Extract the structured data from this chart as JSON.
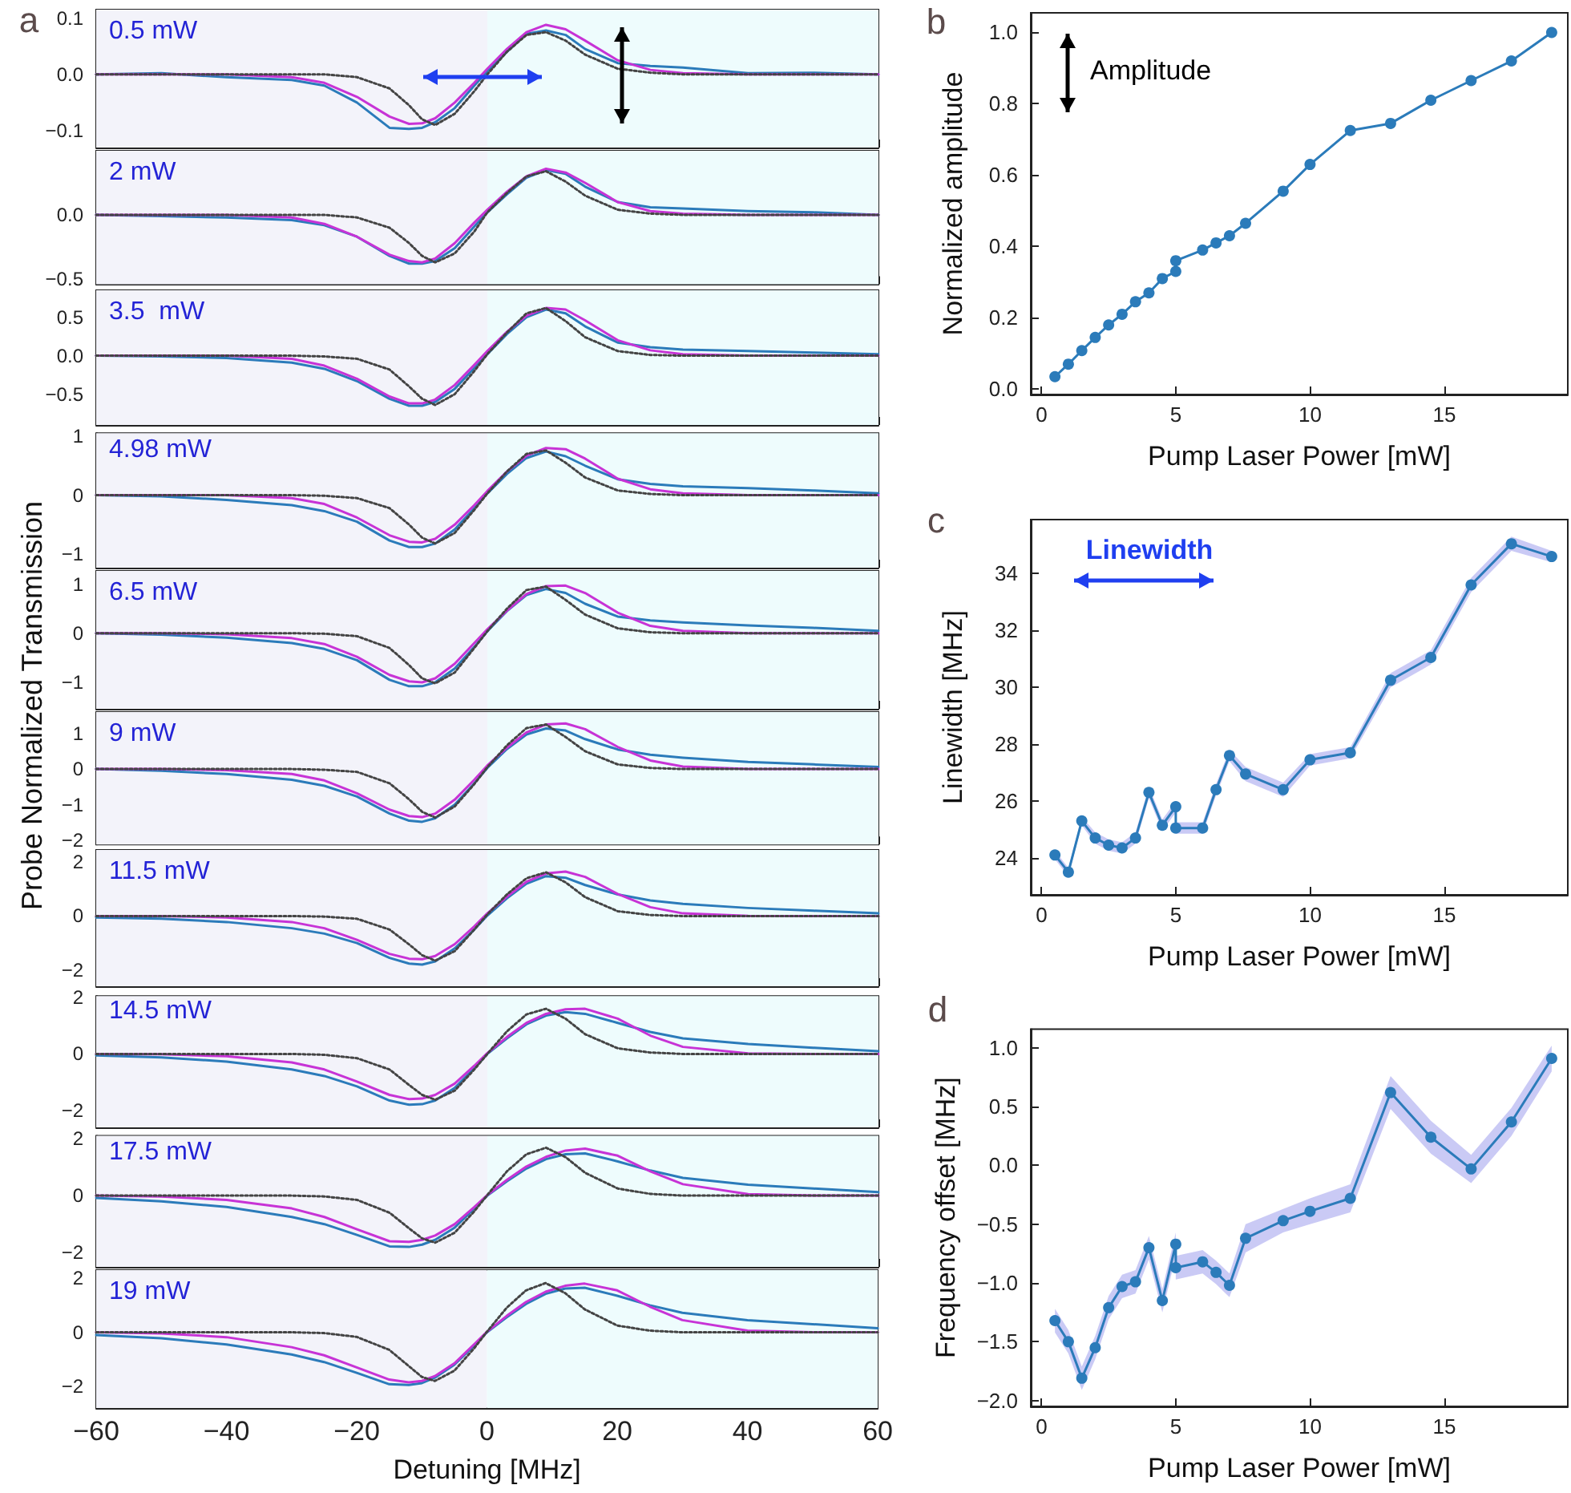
{
  "chart_data": [
    {
      "type": "line",
      "annotations": [
        "a",
        "0.5 mW"
      ],
      "x": [
        -60,
        -50,
        -40,
        -30,
        -25,
        -20,
        -15,
        -12,
        -10,
        -8,
        -5,
        -2,
        0,
        3,
        6,
        9,
        12,
        15,
        20,
        25,
        30,
        40,
        50,
        60
      ],
      "xlim": [
        -60,
        60
      ],
      "xticks": [
        -60,
        -40,
        -20,
        0,
        20,
        40,
        60
      ],
      "ylim": [
        -0.13,
        0.115
      ],
      "yticks": [
        0.1,
        {
          "value": 0,
          "label": "0.0"
        },
        {
          "value": -0.1,
          "label": "−0.1"
        }
      ],
      "tick_labels": "y",
      "marker": "none",
      "bands": [
        {
          "axis": "x",
          "from": -60,
          "to": 0,
          "color": "#f3f3fa"
        },
        {
          "axis": "x",
          "from": 0,
          "to": 60,
          "color": "#eefcfd"
        }
      ],
      "series": [
        {
          "color": "#2b7bba",
          "values": [
            0,
            0.002,
            -0.005,
            -0.01,
            -0.02,
            -0.05,
            -0.095,
            -0.097,
            -0.095,
            -0.085,
            -0.06,
            -0.02,
            0.005,
            0.04,
            0.072,
            0.078,
            0.07,
            0.045,
            0.02,
            0.015,
            0.012,
            0.002,
            0.003,
            0
          ]
        },
        {
          "color": "#c733d6",
          "values": [
            0,
            0,
            0,
            -0.005,
            -0.015,
            -0.04,
            -0.075,
            -0.088,
            -0.087,
            -0.078,
            -0.05,
            -0.015,
            0.01,
            0.045,
            0.075,
            0.088,
            0.08,
            0.06,
            0.025,
            0.008,
            0.002,
            0,
            0,
            0
          ]
        },
        {
          "color": "#444444",
          "line_style": "dotted",
          "values": [
            0,
            0,
            0,
            0,
            0,
            -0.005,
            -0.025,
            -0.055,
            -0.08,
            -0.09,
            -0.07,
            -0.03,
            0,
            0.04,
            0.07,
            0.075,
            0.06,
            0.035,
            0.01,
            0.003,
            0,
            0,
            0,
            0
          ]
        }
      ]
    },
    {
      "type": "line",
      "annotations": [
        "2 mW"
      ],
      "x": [
        -60,
        -50,
        -40,
        -30,
        -25,
        -20,
        -15,
        -12,
        -10,
        -8,
        -5,
        -2,
        0,
        3,
        6,
        9,
        12,
        15,
        20,
        25,
        30,
        40,
        50,
        60
      ],
      "xlim": [
        -60,
        60
      ],
      "xticks": [
        -60,
        -40,
        -20,
        0,
        20,
        40,
        60
      ],
      "ylim": [
        -0.54,
        0.5
      ],
      "yticks": [
        {
          "value": 0,
          "label": "0.0"
        },
        {
          "value": -0.5,
          "label": "−0.5"
        }
      ],
      "tick_labels": "y",
      "marker": "none",
      "bands": [
        {
          "axis": "x",
          "from": -60,
          "to": 0,
          "color": "#f3f3fa"
        },
        {
          "axis": "x",
          "from": 0,
          "to": 60,
          "color": "#eefcfd"
        }
      ],
      "series": [
        {
          "color": "#2b7bba",
          "values": [
            0,
            -0.01,
            -0.02,
            -0.04,
            -0.08,
            -0.17,
            -0.32,
            -0.38,
            -0.38,
            -0.36,
            -0.26,
            -0.09,
            0.02,
            0.16,
            0.29,
            0.35,
            0.32,
            0.22,
            0.1,
            0.06,
            0.05,
            0.03,
            0.02,
            0
          ]
        },
        {
          "color": "#c733d6",
          "values": [
            0,
            0,
            0,
            -0.02,
            -0.07,
            -0.17,
            -0.31,
            -0.36,
            -0.37,
            -0.34,
            -0.22,
            -0.06,
            0.04,
            0.18,
            0.3,
            0.36,
            0.33,
            0.25,
            0.1,
            0.03,
            0.01,
            0,
            0,
            0
          ]
        },
        {
          "color": "#444444",
          "line_style": "dotted",
          "values": [
            0,
            0,
            0,
            0,
            0,
            -0.02,
            -0.1,
            -0.22,
            -0.32,
            -0.37,
            -0.3,
            -0.13,
            0.02,
            0.17,
            0.3,
            0.34,
            0.26,
            0.15,
            0.04,
            0.01,
            0,
            0,
            0,
            0
          ]
        }
      ]
    },
    {
      "type": "line",
      "annotations": [
        "3.5  mW"
      ],
      "x": [
        -60,
        -50,
        -40,
        -30,
        -25,
        -20,
        -15,
        -12,
        -10,
        -8,
        -5,
        -2,
        0,
        3,
        6,
        9,
        12,
        15,
        20,
        25,
        30,
        40,
        50,
        60
      ],
      "xlim": [
        -60,
        60
      ],
      "xticks": [
        -60,
        -40,
        -20,
        0,
        20,
        40,
        60
      ],
      "ylim": [
        -0.9,
        0.85
      ],
      "yticks": [
        0.5,
        {
          "value": 0,
          "label": "0.0"
        },
        {
          "value": -0.5,
          "label": "−0.5"
        }
      ],
      "tick_labels": "y",
      "marker": "none",
      "bands": [
        {
          "axis": "x",
          "from": -60,
          "to": 0,
          "color": "#f3f3fa"
        },
        {
          "axis": "x",
          "from": 0,
          "to": 60,
          "color": "#eefcfd"
        }
      ],
      "series": [
        {
          "color": "#2b7bba",
          "values": [
            0,
            -0.01,
            -0.03,
            -0.09,
            -0.17,
            -0.33,
            -0.56,
            -0.65,
            -0.65,
            -0.6,
            -0.43,
            -0.16,
            0.02,
            0.28,
            0.5,
            0.6,
            0.55,
            0.38,
            0.17,
            0.11,
            0.08,
            0.06,
            0.04,
            0.02
          ]
        },
        {
          "color": "#c733d6",
          "values": [
            0,
            0,
            0,
            -0.04,
            -0.13,
            -0.3,
            -0.53,
            -0.62,
            -0.62,
            -0.57,
            -0.38,
            -0.12,
            0.06,
            0.31,
            0.52,
            0.62,
            0.6,
            0.46,
            0.2,
            0.07,
            0.02,
            0,
            0,
            0
          ]
        },
        {
          "color": "#444444",
          "line_style": "dotted",
          "values": [
            0,
            0,
            0,
            0,
            -0.01,
            -0.04,
            -0.18,
            -0.4,
            -0.56,
            -0.64,
            -0.5,
            -0.2,
            0.02,
            0.3,
            0.55,
            0.62,
            0.45,
            0.24,
            0.06,
            0.01,
            0,
            0,
            0,
            0
          ]
        }
      ]
    },
    {
      "type": "line",
      "annotations": [
        "4.98 mW"
      ],
      "x": [
        -60,
        -50,
        -40,
        -30,
        -25,
        -20,
        -15,
        -12,
        -10,
        -8,
        -5,
        -2,
        0,
        3,
        6,
        9,
        12,
        15,
        20,
        25,
        30,
        40,
        50,
        60
      ],
      "xlim": [
        -60,
        60
      ],
      "xticks": [
        -60,
        -40,
        -20,
        0,
        20,
        40,
        60
      ],
      "ylim": [
        -1.23,
        1.05
      ],
      "yticks": [
        1,
        0,
        {
          "value": -1,
          "label": "−1"
        }
      ],
      "tick_labels": "y",
      "marker": "none",
      "bands": [
        {
          "axis": "x",
          "from": -60,
          "to": 0,
          "color": "#f3f3fa"
        },
        {
          "axis": "x",
          "from": 0,
          "to": 60,
          "color": "#eefcfd"
        }
      ],
      "series": [
        {
          "color": "#2b7bba",
          "values": [
            0,
            -0.02,
            -0.08,
            -0.17,
            -0.27,
            -0.45,
            -0.77,
            -0.88,
            -0.88,
            -0.82,
            -0.58,
            -0.22,
            0.03,
            0.36,
            0.63,
            0.74,
            0.66,
            0.5,
            0.27,
            0.19,
            0.15,
            0.12,
            0.08,
            0.03
          ]
        },
        {
          "color": "#c733d6",
          "values": [
            0,
            0,
            0,
            -0.05,
            -0.15,
            -0.38,
            -0.68,
            -0.79,
            -0.8,
            -0.74,
            -0.5,
            -0.17,
            0.07,
            0.4,
            0.67,
            0.8,
            0.78,
            0.62,
            0.28,
            0.1,
            0.03,
            0,
            0,
            0
          ]
        },
        {
          "color": "#444444",
          "line_style": "dotted",
          "values": [
            0,
            0,
            0,
            0,
            -0.01,
            -0.05,
            -0.22,
            -0.5,
            -0.72,
            -0.82,
            -0.64,
            -0.25,
            0.03,
            0.4,
            0.7,
            0.76,
            0.55,
            0.3,
            0.08,
            0.02,
            0,
            0,
            0,
            0
          ]
        }
      ]
    },
    {
      "type": "line",
      "annotations": [
        "6.5 mW"
      ],
      "x": [
        -60,
        -50,
        -40,
        -30,
        -25,
        -20,
        -15,
        -12,
        -10,
        -8,
        -5,
        -2,
        0,
        3,
        6,
        9,
        12,
        15,
        20,
        25,
        30,
        40,
        50,
        60
      ],
      "xlim": [
        -60,
        60
      ],
      "xticks": [
        -60,
        -40,
        -20,
        0,
        20,
        40,
        60
      ],
      "ylim": [
        -1.54,
        1.27
      ],
      "yticks": [
        1,
        0,
        {
          "value": -1,
          "label": "−1"
        }
      ],
      "tick_labels": "y",
      "marker": "none",
      "bands": [
        {
          "axis": "x",
          "from": -60,
          "to": 0,
          "color": "#f3f3fa"
        },
        {
          "axis": "x",
          "from": 0,
          "to": 60,
          "color": "#eefcfd"
        }
      ],
      "series": [
        {
          "color": "#2b7bba",
          "values": [
            0,
            -0.03,
            -0.09,
            -0.2,
            -0.32,
            -0.55,
            -0.95,
            -1.08,
            -1.08,
            -1,
            -0.72,
            -0.28,
            0.04,
            0.45,
            0.78,
            0.9,
            0.82,
            0.6,
            0.34,
            0.26,
            0.22,
            0.16,
            0.11,
            0.05
          ]
        },
        {
          "color": "#c733d6",
          "values": [
            0,
            0,
            -0.02,
            -0.1,
            -0.22,
            -0.48,
            -0.85,
            -0.98,
            -1,
            -0.92,
            -0.62,
            -0.2,
            0.08,
            0.46,
            0.8,
            0.96,
            0.97,
            0.82,
            0.42,
            0.15,
            0.05,
            0,
            0,
            0
          ]
        },
        {
          "color": "#444444",
          "line_style": "dotted",
          "values": [
            0,
            0,
            0,
            0,
            -0.01,
            -0.06,
            -0.3,
            -0.65,
            -0.92,
            -1.02,
            -0.8,
            -0.3,
            0.04,
            0.5,
            0.88,
            0.95,
            0.68,
            0.38,
            0.1,
            0.02,
            0,
            0,
            0,
            0
          ]
        }
      ]
    },
    {
      "type": "line",
      "annotations": [
        "9 mW"
      ],
      "ylabel": "Probe Normalized Transmission",
      "x": [
        -60,
        -50,
        -40,
        -30,
        -25,
        -20,
        -15,
        -12,
        -10,
        -8,
        -5,
        -2,
        0,
        3,
        6,
        9,
        12,
        15,
        20,
        25,
        30,
        40,
        50,
        60
      ],
      "xlim": [
        -60,
        60
      ],
      "xticks": [
        -60,
        -40,
        -20,
        0,
        20,
        40,
        60
      ],
      "ylim": [
        -2.12,
        1.6
      ],
      "yticks": [
        1,
        0,
        {
          "value": -1,
          "label": "−1"
        },
        {
          "value": -2,
          "label": "−2"
        }
      ],
      "tick_labels": "y",
      "marker": "none",
      "bands": [
        {
          "axis": "x",
          "from": -60,
          "to": 0,
          "color": "#f3f3fa"
        },
        {
          "axis": "x",
          "from": 0,
          "to": 60,
          "color": "#eefcfd"
        }
      ],
      "series": [
        {
          "color": "#2b7bba",
          "values": [
            0,
            -0.05,
            -0.14,
            -0.3,
            -0.47,
            -0.77,
            -1.25,
            -1.45,
            -1.48,
            -1.38,
            -1,
            -0.4,
            0.03,
            0.56,
            0.97,
            1.14,
            1.08,
            0.84,
            0.55,
            0.4,
            0.32,
            0.2,
            0.13,
            0.06
          ]
        },
        {
          "color": "#c733d6",
          "values": [
            0,
            0,
            -0.03,
            -0.14,
            -0.32,
            -0.68,
            -1.14,
            -1.32,
            -1.35,
            -1.25,
            -0.86,
            -0.3,
            0.1,
            0.6,
            1.03,
            1.25,
            1.28,
            1.12,
            0.62,
            0.24,
            0.07,
            0,
            0,
            0
          ]
        },
        {
          "color": "#444444",
          "line_style": "dotted",
          "values": [
            0,
            0,
            0,
            0,
            -0.02,
            -0.08,
            -0.4,
            -0.85,
            -1.2,
            -1.36,
            -1.05,
            -0.42,
            0.05,
            0.66,
            1.15,
            1.25,
            0.9,
            0.5,
            0.13,
            0.03,
            0,
            0,
            0,
            0
          ]
        }
      ]
    },
    {
      "type": "line",
      "annotations": [
        "11.5 mW"
      ],
      "x": [
        -60,
        -50,
        -40,
        -30,
        -25,
        -20,
        -15,
        -12,
        -10,
        -8,
        -5,
        -2,
        0,
        3,
        6,
        9,
        12,
        15,
        20,
        25,
        30,
        40,
        50,
        60
      ],
      "xlim": [
        -60,
        60
      ],
      "xticks": [
        -60,
        -40,
        -20,
        0,
        20,
        40,
        60
      ],
      "ylim": [
        -2.6,
        2.45
      ],
      "yticks": [
        2,
        0,
        {
          "value": -2,
          "label": "−2"
        }
      ],
      "tick_labels": "y",
      "marker": "none",
      "bands": [
        {
          "axis": "x",
          "from": -60,
          "to": 0,
          "color": "#f3f3fa"
        },
        {
          "axis": "x",
          "from": 0,
          "to": 60,
          "color": "#eefcfd"
        }
      ],
      "series": [
        {
          "color": "#2b7bba",
          "values": [
            -0.05,
            -0.1,
            -0.22,
            -0.45,
            -0.65,
            -1,
            -1.55,
            -1.76,
            -1.8,
            -1.68,
            -1.2,
            -0.5,
            0.02,
            0.66,
            1.2,
            1.48,
            1.42,
            1.15,
            0.8,
            0.58,
            0.45,
            0.3,
            0.2,
            0.1
          ]
        },
        {
          "color": "#c733d6",
          "values": [
            0,
            0,
            -0.05,
            -0.22,
            -0.45,
            -0.88,
            -1.4,
            -1.58,
            -1.6,
            -1.48,
            -1.04,
            -0.38,
            0.1,
            0.72,
            1.27,
            1.58,
            1.65,
            1.45,
            0.82,
            0.33,
            0.1,
            0.01,
            0,
            0
          ]
        },
        {
          "color": "#444444",
          "line_style": "dotted",
          "values": [
            0,
            0,
            0,
            0,
            -0.02,
            -0.1,
            -0.5,
            -1.05,
            -1.45,
            -1.65,
            -1.3,
            -0.5,
            0.06,
            0.8,
            1.4,
            1.62,
            1.25,
            0.7,
            0.18,
            0.04,
            0,
            0,
            0,
            0
          ]
        }
      ]
    },
    {
      "type": "line",
      "annotations": [
        "14.5 mW"
      ],
      "x": [
        -60,
        -50,
        -40,
        -30,
        -25,
        -20,
        -15,
        -12,
        -10,
        -8,
        -5,
        -2,
        0,
        3,
        6,
        9,
        12,
        15,
        20,
        25,
        30,
        40,
        50,
        60
      ],
      "xlim": [
        -60,
        60
      ],
      "xticks": [
        -60,
        -40,
        -20,
        0,
        20,
        40,
        60
      ],
      "ylim": [
        -2.6,
        2.05
      ],
      "yticks": [
        2,
        0,
        {
          "value": -2,
          "label": "−2"
        }
      ],
      "tick_labels": "y",
      "marker": "none",
      "bands": [
        {
          "axis": "x",
          "from": -60,
          "to": 0,
          "color": "#f3f3fa"
        },
        {
          "axis": "x",
          "from": 0,
          "to": 60,
          "color": "#eefcfd"
        }
      ],
      "series": [
        {
          "color": "#2b7bba",
          "values": [
            -0.05,
            -0.12,
            -0.27,
            -0.55,
            -0.78,
            -1.15,
            -1.65,
            -1.8,
            -1.78,
            -1.65,
            -1.2,
            -0.5,
            0,
            0.55,
            1.05,
            1.36,
            1.48,
            1.42,
            1.1,
            0.78,
            0.55,
            0.35,
            0.22,
            0.1
          ]
        },
        {
          "color": "#c733d6",
          "values": [
            0,
            -0.01,
            -0.08,
            -0.3,
            -0.55,
            -0.98,
            -1.45,
            -1.6,
            -1.58,
            -1.45,
            -1.05,
            -0.42,
            0.03,
            0.6,
            1.1,
            1.42,
            1.58,
            1.6,
            1.25,
            0.65,
            0.25,
            0.02,
            0,
            0
          ]
        },
        {
          "color": "#444444",
          "line_style": "dotted",
          "values": [
            0,
            0,
            0,
            0,
            -0.03,
            -0.15,
            -0.55,
            -1.1,
            -1.45,
            -1.62,
            -1.3,
            -0.55,
            0,
            0.8,
            1.4,
            1.6,
            1.25,
            0.7,
            0.2,
            0.05,
            0,
            0,
            0,
            0
          ]
        }
      ]
    },
    {
      "type": "line",
      "annotations": [
        "17.5 mW"
      ],
      "x": [
        -60,
        -50,
        -40,
        -30,
        -25,
        -20,
        -15,
        -12,
        -10,
        -8,
        -5,
        -2,
        0,
        3,
        6,
        9,
        12,
        15,
        20,
        25,
        30,
        40,
        50,
        60
      ],
      "xlim": [
        -60,
        60
      ],
      "xticks": [
        -60,
        -40,
        -20,
        0,
        20,
        40,
        60
      ],
      "ylim": [
        -2.5,
        2.1
      ],
      "yticks": [
        2,
        0,
        {
          "value": -2,
          "label": "−2"
        }
      ],
      "tick_labels": "y",
      "marker": "none",
      "bands": [
        {
          "axis": "x",
          "from": -60,
          "to": 0,
          "color": "#f3f3fa"
        },
        {
          "axis": "x",
          "from": 0,
          "to": 60,
          "color": "#eefcfd"
        }
      ],
      "series": [
        {
          "color": "#2b7bba",
          "values": [
            -0.08,
            -0.2,
            -0.4,
            -0.75,
            -1,
            -1.38,
            -1.78,
            -1.8,
            -1.72,
            -1.55,
            -1.12,
            -0.45,
            0,
            0.5,
            0.95,
            1.28,
            1.45,
            1.48,
            1.2,
            0.88,
            0.62,
            0.38,
            0.25,
            0.12
          ]
        },
        {
          "color": "#c733d6",
          "values": [
            0,
            -0.03,
            -0.15,
            -0.45,
            -0.75,
            -1.18,
            -1.6,
            -1.62,
            -1.55,
            -1.4,
            -1,
            -0.4,
            0.02,
            0.55,
            1.02,
            1.36,
            1.58,
            1.65,
            1.4,
            0.85,
            0.4,
            0.05,
            0,
            0
          ]
        },
        {
          "color": "#444444",
          "line_style": "dotted",
          "values": [
            0,
            0,
            0,
            0,
            -0.03,
            -0.15,
            -0.6,
            -1.15,
            -1.5,
            -1.65,
            -1.3,
            -0.55,
            0.02,
            0.85,
            1.45,
            1.68,
            1.35,
            0.8,
            0.25,
            0.06,
            0,
            0,
            0,
            0
          ]
        }
      ]
    },
    {
      "type": "line",
      "annotations": [
        "19 mW"
      ],
      "xlabel": "Detuning [MHz]",
      "x": [
        -60,
        -50,
        -40,
        -30,
        -25,
        -20,
        -15,
        -12,
        -10,
        -8,
        -5,
        -2,
        0,
        3,
        6,
        9,
        12,
        15,
        20,
        25,
        30,
        40,
        50,
        60
      ],
      "xlim": [
        -60,
        60
      ],
      "xticks": [
        {
          "value": -60,
          "label": "−60"
        },
        {
          "value": -40,
          "label": "−40"
        },
        {
          "value": -20,
          "label": "−20"
        },
        0,
        20,
        40,
        60
      ],
      "ylim": [
        -2.8,
        2.3
      ],
      "yticks": [
        2,
        0,
        {
          "value": -2,
          "label": "−2"
        }
      ],
      "marker": "none",
      "bands": [
        {
          "axis": "x",
          "from": -60,
          "to": 0,
          "color": "#f3f3fa"
        },
        {
          "axis": "x",
          "from": 0,
          "to": 60,
          "color": "#eefcfd"
        }
      ],
      "series": [
        {
          "color": "#2b7bba",
          "values": [
            -0.1,
            -0.22,
            -0.45,
            -0.82,
            -1.1,
            -1.5,
            -1.92,
            -1.95,
            -1.88,
            -1.68,
            -1.2,
            -0.5,
            0,
            0.55,
            1.05,
            1.42,
            1.62,
            1.65,
            1.35,
            1,
            0.72,
            0.45,
            0.3,
            0.15
          ]
        },
        {
          "color": "#c733d6",
          "values": [
            0,
            -0.04,
            -0.18,
            -0.55,
            -0.85,
            -1.3,
            -1.75,
            -1.85,
            -1.8,
            -1.62,
            -1.15,
            -0.45,
            0.02,
            0.6,
            1.12,
            1.5,
            1.72,
            1.8,
            1.55,
            0.95,
            0.45,
            0.06,
            0,
            0
          ]
        },
        {
          "color": "#444444",
          "line_style": "dotted",
          "values": [
            0,
            0,
            0,
            0,
            -0.03,
            -0.17,
            -0.65,
            -1.25,
            -1.65,
            -1.8,
            -1.42,
            -0.6,
            0.02,
            0.9,
            1.55,
            1.82,
            1.45,
            0.85,
            0.25,
            0.06,
            0,
            0,
            0,
            0
          ]
        }
      ]
    },
    {
      "type": "line",
      "annotations": [
        "b",
        "Amplitude"
      ],
      "xlabel": "Pump Laser Power [mW]",
      "ylabel": "Normalized amplitude",
      "x": [
        0.5,
        1,
        1.5,
        2,
        2.5,
        3,
        3.5,
        4,
        4.5,
        5,
        5,
        6,
        6.5,
        7,
        7.6,
        9,
        10,
        11.5,
        13,
        14.5,
        16,
        17.5,
        19
      ],
      "xlim": [
        -0.4,
        19.6
      ],
      "xticks": [
        0,
        5,
        10,
        15
      ],
      "ylim": [
        -0.015,
        1.055
      ],
      "yticks": [
        {
          "value": 0,
          "label": "0.0"
        },
        0.2,
        0.4,
        0.6,
        0.8,
        {
          "value": 1,
          "label": "1.0"
        }
      ],
      "marker": "circle",
      "series": [
        {
          "color": "#2b7bba",
          "values": [
            0.035,
            0.07,
            0.108,
            0.145,
            0.18,
            0.21,
            0.245,
            0.27,
            0.31,
            0.33,
            0.36,
            0.39,
            0.41,
            0.43,
            0.465,
            0.555,
            0.63,
            0.725,
            0.745,
            0.81,
            0.865,
            0.92,
            1
          ]
        }
      ]
    },
    {
      "type": "line",
      "annotations": [
        "c",
        "Linewidth"
      ],
      "xlabel": "Pump Laser Power [mW]",
      "ylabel": "Linewidth [MHz]",
      "x": [
        0.5,
        1,
        1.5,
        2,
        2.5,
        3,
        3.5,
        4,
        4.5,
        5,
        5,
        6,
        6.5,
        7,
        7.6,
        9,
        10,
        11.5,
        13,
        14.5,
        16,
        17.5,
        19
      ],
      "xlim": [
        -0.4,
        19.6
      ],
      "xticks": [
        0,
        5,
        10,
        15
      ],
      "ylim": [
        22.7,
        35.9
      ],
      "yticks": [
        24,
        26,
        28,
        30,
        32,
        34
      ],
      "marker": "circle",
      "series": [
        {
          "color": "#2b7bba",
          "values": [
            24.1,
            23.5,
            25.3,
            24.7,
            24.45,
            24.35,
            24.7,
            26.3,
            25.15,
            25.8,
            25.05,
            25.05,
            26.4,
            27.6,
            26.95,
            26.4,
            27.45,
            27.7,
            30.25,
            31.05,
            33.6,
            35.05,
            34.6
          ],
          "lower": [
            23.95,
            23.35,
            25.15,
            24.5,
            24.25,
            24.15,
            24.5,
            26.1,
            24.95,
            25.6,
            24.85,
            24.85,
            26.2,
            27.4,
            26.7,
            26.15,
            27.25,
            27.5,
            30.0,
            30.8,
            33.35,
            34.8,
            34.4
          ],
          "upper": [
            24.25,
            23.65,
            25.45,
            24.9,
            24.65,
            24.55,
            24.9,
            26.5,
            25.35,
            26.0,
            25.25,
            25.25,
            26.6,
            27.8,
            27.2,
            26.65,
            27.65,
            27.9,
            30.5,
            31.3,
            33.85,
            35.3,
            34.8
          ]
        }
      ]
    },
    {
      "type": "line",
      "annotations": [
        "d"
      ],
      "xlabel": "Pump Laser Power [mW]",
      "ylabel": "Frequency offset [MHz]",
      "x": [
        0.5,
        1,
        1.5,
        2,
        2.5,
        3,
        3.5,
        4,
        4.5,
        5,
        5,
        6,
        6.5,
        7,
        7.6,
        9,
        10,
        11.5,
        13,
        14.5,
        16,
        17.5,
        19
      ],
      "xlim": [
        -0.4,
        19.6
      ],
      "xticks": [
        0,
        5,
        10,
        15
      ],
      "ylim": [
        -2.05,
        1.16
      ],
      "yticks": [
        {
          "value": -2,
          "label": "−2.0"
        },
        {
          "value": -1.5,
          "label": "−1.5"
        },
        {
          "value": -1,
          "label": "−1.0"
        },
        {
          "value": -0.5,
          "label": "−0.5"
        },
        {
          "value": 0,
          "label": "0.0"
        },
        0.5,
        {
          "value": 1,
          "label": "1.0"
        }
      ],
      "marker": "circle",
      "series": [
        {
          "color": "#2b7bba",
          "values": [
            -1.32,
            -1.5,
            -1.81,
            -1.55,
            -1.21,
            -1.03,
            -0.99,
            -0.7,
            -1.15,
            -0.67,
            -0.87,
            -0.82,
            -0.91,
            -1.02,
            -0.62,
            -0.47,
            -0.39,
            -0.28,
            0.62,
            0.24,
            -0.03,
            0.37,
            0.91
          ],
          "lower": [
            -1.42,
            -1.6,
            -1.91,
            -1.65,
            -1.31,
            -1.13,
            -1.09,
            -0.8,
            -1.25,
            -0.77,
            -0.97,
            -0.92,
            -1.01,
            -1.12,
            -0.74,
            -0.57,
            -0.5,
            -0.4,
            0.48,
            0.1,
            -0.15,
            0.25,
            0.8
          ],
          "upper": [
            -1.22,
            -1.4,
            -1.71,
            -1.45,
            -1.11,
            -0.93,
            -0.89,
            -0.6,
            -1.05,
            -0.57,
            -0.77,
            -0.72,
            -0.81,
            -0.92,
            -0.5,
            -0.37,
            -0.28,
            -0.16,
            0.76,
            0.38,
            0.09,
            0.49,
            1.02
          ]
        }
      ]
    }
  ]
}
